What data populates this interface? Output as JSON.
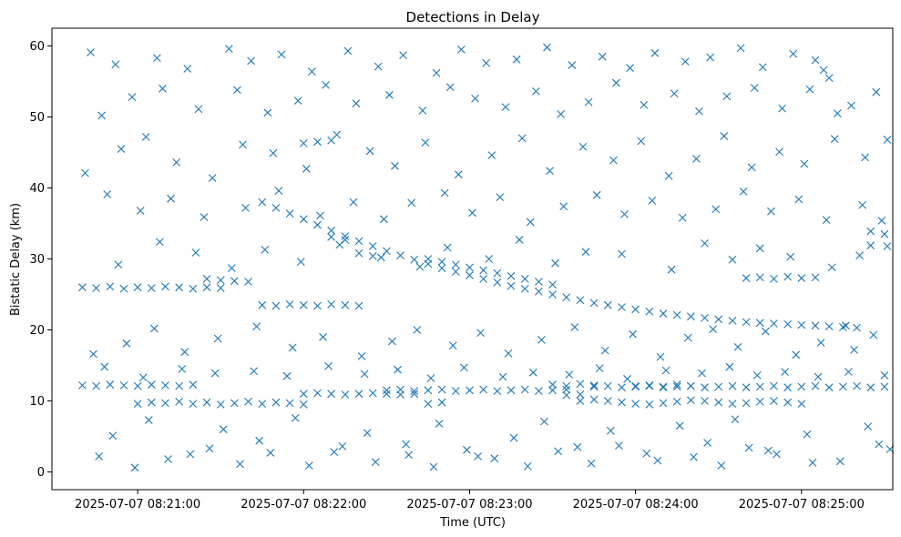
{
  "chart_data": {
    "type": "scatter",
    "title": "Detections in Delay",
    "xlabel": "Time (UTC)",
    "ylabel": "Bistatic Delay (km)",
    "marker": "x",
    "color": "#1f77b4",
    "grid": false,
    "legend": "none",
    "x_unit": "UTC time",
    "xlim": [
      "2025-07-07 08:20:29",
      "2025-07-07 08:25:33"
    ],
    "ylim": [
      -2.5,
      62.5
    ],
    "xticks": [
      "2025-07-07 08:21:00",
      "2025-07-07 08:22:00",
      "2025-07-07 08:23:00",
      "2025-07-07 08:24:00",
      "2025-07-07 08:25:00"
    ],
    "yticks": [
      0,
      10,
      20,
      30,
      40,
      50,
      60
    ],
    "series": [
      {
        "x": [
          "08:20:40",
          "08:20:45",
          "08:20:50",
          "08:20:55",
          "08:21:00",
          "08:21:05",
          "08:21:10",
          "08:21:15",
          "08:21:20",
          "08:21:25",
          "08:21:30",
          "08:21:45",
          "08:21:50",
          "08:21:55",
          "08:22:00",
          "08:22:05",
          "08:22:10",
          "08:22:15",
          "08:22:20",
          "08:22:30",
          "08:22:35",
          "08:22:40",
          "08:22:45",
          "08:22:50",
          "08:22:55",
          "08:23:00",
          "08:23:05",
          "08:23:10",
          "08:23:15",
          "08:23:20",
          "08:23:25",
          "08:23:30",
          "08:23:35",
          "08:23:45",
          "08:23:50",
          "08:23:55",
          "08:24:00",
          "08:24:05",
          "08:24:10",
          "08:24:15",
          "08:24:20",
          "08:24:25",
          "08:24:30",
          "08:24:35",
          "08:24:40",
          "08:24:45",
          "08:24:50",
          "08:24:55",
          "08:25:00",
          "08:25:05",
          "08:25:10",
          "08:25:15",
          "08:25:20",
          "08:25:25",
          "08:25:30",
          "08:20:40",
          "08:20:45",
          "08:20:50",
          "08:20:55",
          "08:21:00",
          "08:21:05",
          "08:21:10",
          "08:21:15",
          "08:21:20",
          "08:21:25",
          "08:21:30",
          "08:21:35",
          "08:21:40",
          "08:22:00",
          "08:22:05",
          "08:22:10",
          "08:23:30",
          "08:23:35",
          "08:23:40",
          "08:23:45",
          "08:24:00",
          "08:24:05",
          "08:24:10",
          "08:24:15",
          "08:24:20",
          "08:24:40",
          "08:24:45",
          "08:24:50",
          "08:24:55",
          "08:25:00",
          "08:25:05",
          "08:21:00",
          "08:21:05",
          "08:21:10",
          "08:21:15",
          "08:21:20",
          "08:21:25",
          "08:21:30",
          "08:21:35",
          "08:21:40",
          "08:21:45",
          "08:21:50",
          "08:21:55",
          "08:22:00",
          "08:21:45",
          "08:21:50",
          "08:21:55",
          "08:22:00",
          "08:22:05",
          "08:22:10",
          "08:22:15",
          "08:22:20",
          "08:22:25",
          "08:22:30",
          "08:22:35",
          "08:22:40",
          "08:22:45",
          "08:22:50",
          "08:22:55",
          "08:23:00",
          "08:23:05",
          "08:23:10",
          "08:23:15",
          "08:23:20",
          "08:23:25",
          "08:23:30",
          "08:23:35",
          "08:23:40",
          "08:23:45",
          "08:23:50",
          "08:23:55",
          "08:24:00",
          "08:24:05",
          "08:24:10",
          "08:24:15",
          "08:24:20",
          "08:24:25",
          "08:24:30",
          "08:24:35",
          "08:24:40",
          "08:24:45",
          "08:24:50",
          "08:24:55",
          "08:25:00",
          "08:25:05",
          "08:25:10",
          "08:25:15",
          "08:25:20",
          "08:25:25",
          "08:25:30",
          "08:22:10",
          "08:22:15",
          "08:22:20",
          "08:22:25",
          "08:22:45",
          "08:22:50",
          "08:22:55",
          "08:23:00",
          "08:23:05",
          "08:23:10",
          "08:23:15",
          "08:23:20",
          "08:23:25",
          "08:23:30",
          "08:23:35",
          "08:23:40",
          "08:22:00",
          "08:22:05",
          "08:22:10",
          "08:22:15",
          "08:22:20",
          "08:22:25",
          "08:22:30",
          "08:22:35",
          "08:22:40",
          "08:22:45",
          "08:22:50",
          "08:23:40",
          "08:23:45",
          "08:23:50",
          "08:23:55",
          "08:24:00",
          "08:24:05",
          "08:24:10",
          "08:24:15",
          "08:24:20",
          "08:24:25",
          "08:24:30",
          "08:24:35",
          "08:24:40",
          "08:24:45",
          "08:24:50",
          "08:24:55",
          "08:25:00",
          "08:25:05",
          "08:25:10",
          "08:20:43",
          "08:20:52",
          "08:21:07",
          "08:21:18",
          "08:21:33",
          "08:21:41",
          "08:21:52",
          "08:22:03",
          "08:22:16",
          "08:22:27",
          "08:22:36",
          "08:22:48",
          "08:22:57",
          "08:23:06",
          "08:23:17",
          "08:23:28",
          "08:23:37",
          "08:23:48",
          "08:23:58",
          "08:24:07",
          "08:24:18",
          "08:24:27",
          "08:24:38",
          "08:24:46",
          "08:24:57",
          "08:25:08",
          "08:25:18",
          "08:25:27",
          "08:20:47",
          "08:20:58",
          "08:21:09",
          "08:21:22",
          "08:21:36",
          "08:21:47",
          "08:21:58",
          "08:22:08",
          "08:22:19",
          "08:22:31",
          "08:22:43",
          "08:22:53",
          "08:23:02",
          "08:23:13",
          "08:23:24",
          "08:23:33",
          "08:23:43",
          "08:23:53",
          "08:24:03",
          "08:24:14",
          "08:24:23",
          "08:24:33",
          "08:24:43",
          "08:24:53",
          "08:25:03",
          "08:25:13",
          "08:25:23",
          "08:25:31",
          "08:20:41",
          "08:20:54",
          "08:21:03",
          "08:21:14",
          "08:21:27",
          "08:21:38",
          "08:21:49",
          "08:22:01",
          "08:22:12",
          "08:22:24",
          "08:22:33",
          "08:22:44",
          "08:22:56",
          "08:23:08",
          "08:23:19",
          "08:23:29",
          "08:23:41",
          "08:23:52",
          "08:24:02",
          "08:24:12",
          "08:24:22",
          "08:24:32",
          "08:24:42",
          "08:24:52",
          "08:25:01",
          "08:25:12",
          "08:25:22",
          "08:25:29",
          "08:20:49",
          "08:21:01",
          "08:21:12",
          "08:21:24",
          "08:21:39",
          "08:21:51",
          "08:22:06",
          "08:22:18",
          "08:22:29",
          "08:22:39",
          "08:22:51",
          "08:23:01",
          "08:23:11",
          "08:23:22",
          "08:23:34",
          "08:23:46",
          "08:23:56",
          "08:24:06",
          "08:24:17",
          "08:24:29",
          "08:24:39",
          "08:24:49",
          "08:24:59",
          "08:25:09",
          "08:25:19",
          "08:25:26",
          "08:20:44",
          "08:20:56",
          "08:21:06",
          "08:21:17",
          "08:21:29",
          "08:21:43",
          "08:21:56",
          "08:22:07",
          "08:22:21",
          "08:22:32",
          "08:22:41",
          "08:22:54",
          "08:23:04",
          "08:23:14",
          "08:23:26",
          "08:23:38",
          "08:23:49",
          "08:23:59",
          "08:24:09",
          "08:24:19",
          "08:24:28",
          "08:24:37",
          "08:24:47",
          "08:24:58",
          "08:25:07",
          "08:25:16",
          "08:25:24",
          "08:25:32",
          "08:20:51",
          "08:21:04",
          "08:21:19",
          "08:21:31",
          "08:21:44",
          "08:21:57",
          "08:22:11",
          "08:22:23",
          "08:22:37",
          "08:22:49",
          "08:23:03",
          "08:23:16",
          "08:23:27",
          "08:23:39",
          "08:23:51",
          "08:24:04",
          "08:24:16",
          "08:24:26",
          "08:24:36",
          "08:24:48",
          "08:25:02",
          "08:25:14",
          "08:25:28",
          "08:20:46",
          "08:20:59",
          "08:21:11",
          "08:21:26",
          "08:21:37",
          "08:21:48",
          "08:22:02",
          "08:22:14",
          "08:22:26",
          "08:22:38",
          "08:22:47",
          "08:22:59",
          "08:23:09",
          "08:23:21",
          "08:23:32",
          "08:23:44",
          "08:23:54",
          "08:24:08",
          "08:24:21",
          "08:24:31",
          "08:24:41",
          "08:24:51",
          "08:25:04",
          "08:25:17",
          "08:25:30",
          "08:20:48",
          "08:21:02",
          "08:21:16",
          "08:21:28",
          "08:21:42",
          "08:21:54",
          "08:22:09",
          "08:22:22",
          "08:22:34",
          "08:22:46",
          "08:22:58",
          "08:23:12",
          "08:23:23",
          "08:23:36",
          "08:23:47",
          "08:23:57",
          "08:24:11",
          "08:24:24",
          "08:24:34",
          "08:24:44",
          "08:24:54",
          "08:25:06",
          "08:25:21",
          "08:25:31",
          "08:20:53",
          "08:21:08",
          "08:21:21",
          "08:21:34",
          "08:21:46",
          "08:21:59",
          "08:22:13",
          "08:22:28",
          "08:22:42",
          "08:22:52",
          "08:23:07",
          "08:23:18",
          "08:23:31",
          "08:23:42",
          "08:23:55",
          "08:24:13",
          "08:24:25",
          "08:24:35",
          "08:24:45",
          "08:24:56",
          "08:25:11",
          "08:25:25"
        ],
        "y": [
          26.0,
          25.9,
          26.1,
          25.8,
          26.0,
          25.9,
          26.1,
          26.0,
          25.8,
          26.0,
          25.9,
          23.5,
          23.4,
          23.6,
          23.5,
          23.4,
          23.6,
          23.5,
          23.4,
          11.5,
          11.6,
          11.4,
          11.5,
          11.6,
          11.4,
          11.5,
          11.6,
          11.4,
          11.5,
          11.6,
          11.4,
          11.5,
          11.6,
          12.0,
          12.1,
          11.9,
          12.0,
          12.1,
          11.9,
          12.0,
          12.1,
          11.9,
          12.0,
          12.1,
          11.9,
          12.0,
          12.1,
          11.9,
          12.0,
          12.1,
          11.9,
          12.0,
          12.1,
          11.9,
          12.0,
          12.2,
          12.1,
          12.3,
          12.2,
          12.1,
          12.3,
          12.2,
          12.1,
          12.3,
          27.2,
          27.0,
          26.9,
          26.8,
          46.3,
          46.5,
          46.7,
          12.3,
          12.1,
          12.4,
          12.2,
          12.1,
          12.2,
          12.0,
          12.3,
          12.1,
          27.3,
          27.4,
          27.2,
          27.5,
          27.3,
          27.4,
          9.6,
          9.8,
          9.7,
          9.9,
          9.6,
          9.8,
          9.5,
          9.7,
          9.9,
          9.6,
          9.8,
          9.7,
          9.5,
          38.0,
          37.2,
          36.4,
          35.6,
          34.8,
          34.0,
          33.2,
          32.5,
          31.8,
          31.1,
          30.5,
          29.9,
          29.3,
          28.7,
          28.2,
          27.7,
          27.2,
          26.7,
          26.2,
          25.8,
          25.4,
          25.0,
          24.6,
          24.2,
          23.8,
          23.5,
          23.2,
          22.9,
          22.6,
          22.3,
          22.1,
          21.9,
          21.7,
          21.5,
          21.3,
          21.1,
          21.0,
          20.9,
          20.8,
          20.7,
          20.6,
          20.5,
          20.4,
          20.3,
          33.9,
          33.5,
          33.1,
          32.7,
          30.8,
          30.4,
          30.0,
          29.6,
          29.2,
          28.8,
          28.4,
          28.0,
          27.6,
          27.2,
          26.8,
          26.4,
          10.8,
          10.9,
          11.0,
          11.1,
          11.0,
          10.9,
          11.0,
          11.1,
          11.0,
          10.9,
          11.0,
          9.6,
          9.8,
          10.0,
          10.2,
          10.0,
          9.8,
          9.6,
          9.5,
          9.7,
          9.9,
          10.1,
          10.0,
          9.8,
          9.6,
          9.7,
          9.9,
          10.0,
          9.8,
          9.6,
          58.0,
          55.5,
          59.1,
          57.4,
          58.3,
          56.8,
          59.6,
          57.9,
          58.8,
          56.4,
          59.3,
          57.1,
          58.7,
          56.2,
          59.5,
          57.6,
          58.1,
          59.8,
          57.3,
          58.5,
          56.9,
          59.0,
          57.8,
          58.4,
          59.7,
          57.0,
          58.9,
          56.6,
          51.6,
          53.5,
          50.2,
          52.8,
          54.0,
          51.1,
          53.8,
          50.6,
          52.3,
          54.5,
          51.9,
          53.1,
          50.9,
          54.2,
          52.6,
          51.4,
          53.6,
          50.4,
          52.1,
          54.8,
          51.7,
          53.3,
          50.8,
          52.9,
          54.1,
          51.2,
          53.9,
          50.5,
          44.3,
          46.8,
          42.1,
          45.5,
          47.2,
          43.6,
          41.4,
          46.1,
          44.9,
          42.7,
          47.5,
          45.2,
          43.1,
          46.4,
          41.9,
          44.6,
          47.0,
          42.4,
          45.8,
          43.9,
          46.6,
          41.7,
          44.1,
          47.3,
          42.9,
          45.1,
          43.4,
          46.9,
          37.6,
          35.4,
          39.1,
          36.8,
          38.5,
          35.9,
          37.2,
          39.6,
          36.1,
          38.0,
          35.6,
          37.9,
          39.3,
          36.5,
          38.7,
          35.2,
          37.4,
          39.0,
          36.3,
          38.2,
          35.8,
          37.0,
          39.5,
          36.7,
          38.4,
          35.5,
          17.2,
          19.3,
          16.6,
          18.1,
          20.2,
          16.9,
          18.8,
          20.5,
          17.5,
          19.0,
          16.3,
          18.4,
          20.0,
          17.8,
          19.6,
          16.7,
          18.6,
          20.4,
          17.1,
          19.4,
          16.2,
          18.9,
          20.1,
          17.6,
          19.8,
          16.5,
          18.2,
          20.6,
          6.4,
          3.2,
          5.1,
          7.3,
          2.5,
          6.0,
          4.4,
          7.6,
          2.8,
          5.5,
          3.9,
          6.8,
          2.2,
          4.8,
          7.1,
          3.5,
          5.8,
          2.6,
          6.5,
          4.1,
          7.4,
          3.0,
          5.3,
          1.5,
          3.9,
          2.2,
          0.6,
          1.8,
          3.3,
          1.1,
          2.7,
          0.9,
          3.6,
          1.4,
          2.4,
          0.7,
          3.1,
          1.9,
          0.8,
          2.9,
          1.2,
          3.7,
          1.6,
          2.1,
          0.9,
          3.4,
          2.5,
          1.3,
          14.1,
          13.6,
          14.8,
          13.3,
          14.5,
          13.9,
          14.2,
          13.5,
          14.9,
          13.8,
          14.4,
          13.2,
          14.7,
          13.4,
          14.0,
          13.7,
          14.6,
          13.1,
          14.3,
          13.9,
          14.8,
          13.6,
          14.1,
          13.4,
          30.5,
          31.8,
          29.2,
          32.4,
          30.9,
          28.7,
          31.3,
          29.6,
          32.0,
          30.2,
          28.9,
          31.6,
          30.0,
          32.7,
          29.4,
          31.0,
          30.7,
          28.5,
          32.2,
          29.9,
          31.5,
          30.3,
          28.8,
          31.9
        ]
      }
    ]
  }
}
